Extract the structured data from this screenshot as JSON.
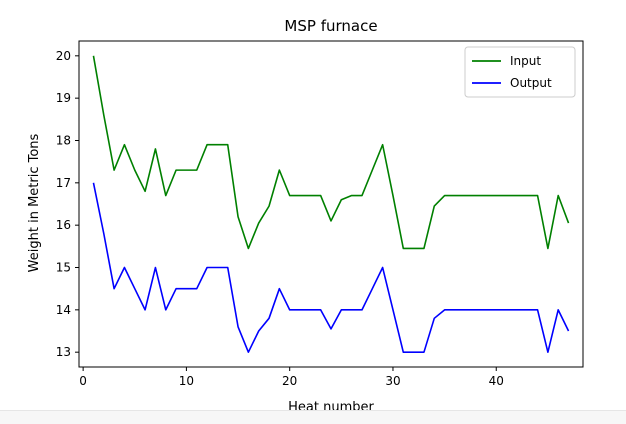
{
  "chart_data": {
    "type": "line",
    "title": "MSP furnace",
    "xlabel": "Heat number",
    "ylabel": "Weight in Metric Tons",
    "xlim": [
      -0.4,
      48.4
    ],
    "ylim": [
      12.65,
      20.35
    ],
    "xticks": [
      0,
      10,
      20,
      30,
      40
    ],
    "yticks": [
      13,
      14,
      15,
      16,
      17,
      18,
      19,
      20
    ],
    "grid": false,
    "legend_position": "top-right",
    "x": [
      1,
      2,
      3,
      4,
      5,
      6,
      7,
      8,
      9,
      10,
      11,
      12,
      13,
      14,
      15,
      16,
      17,
      18,
      19,
      20,
      21,
      22,
      23,
      24,
      25,
      26,
      27,
      28,
      29,
      30,
      31,
      32,
      33,
      34,
      35,
      36,
      37,
      38,
      39,
      40,
      41,
      42,
      43,
      44,
      45,
      46,
      47
    ],
    "series": [
      {
        "name": "Input",
        "color": "#008000",
        "values": [
          20.0,
          18.6,
          17.3,
          17.9,
          17.3,
          16.8,
          17.8,
          16.7,
          17.3,
          17.3,
          17.3,
          17.9,
          17.9,
          17.9,
          16.2,
          15.45,
          16.05,
          16.45,
          17.3,
          16.7,
          16.7,
          16.7,
          16.7,
          16.1,
          16.6,
          16.7,
          16.7,
          17.3,
          17.9,
          16.7,
          15.45,
          15.45,
          15.45,
          16.45,
          16.7,
          16.7,
          16.7,
          16.7,
          16.7,
          16.7,
          16.7,
          16.7,
          16.7,
          16.7,
          15.45,
          16.7,
          16.05
        ]
      },
      {
        "name": "Output",
        "color": "#0000ff",
        "values": [
          17.0,
          15.8,
          14.5,
          15.0,
          14.5,
          14.0,
          15.0,
          14.0,
          14.5,
          14.5,
          14.5,
          15.0,
          15.0,
          15.0,
          13.6,
          13.0,
          13.5,
          13.8,
          14.5,
          14.0,
          14.0,
          14.0,
          14.0,
          13.55,
          14.0,
          14.0,
          14.0,
          14.5,
          15.0,
          14.0,
          13.0,
          13.0,
          13.0,
          13.8,
          14.0,
          14.0,
          14.0,
          14.0,
          14.0,
          14.0,
          14.0,
          14.0,
          14.0,
          14.0,
          13.0,
          14.0,
          13.5
        ]
      }
    ]
  }
}
